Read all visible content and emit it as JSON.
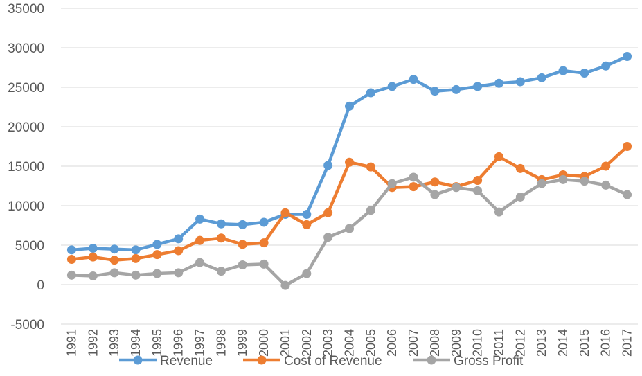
{
  "chart_data": {
    "type": "line",
    "title": "",
    "xlabel": "",
    "ylabel": "",
    "categories": [
      "1991",
      "1992",
      "1993",
      "1994",
      "1995",
      "1996",
      "1997",
      "1998",
      "1999",
      "2000",
      "2001",
      "2002",
      "2003",
      "2004",
      "2005",
      "2006",
      "2007",
      "2008",
      "2009",
      "2010",
      "2011",
      "2012",
      "2013",
      "2014",
      "2015",
      "2016",
      "2017"
    ],
    "ylim": [
      -5000,
      35000
    ],
    "yticks": [
      -5000,
      0,
      5000,
      10000,
      15000,
      20000,
      25000,
      30000,
      35000
    ],
    "ytick_labels": [
      "-5000",
      "0",
      "5000",
      "10000",
      "15000",
      "20000",
      "25000",
      "30000",
      "35000"
    ],
    "grid": true,
    "legend_position": "bottom",
    "series": [
      {
        "name": "Revenue",
        "color": "#5b9bd5",
        "values": [
          4400,
          4600,
          4500,
          4400,
          5100,
          5800,
          8300,
          7700,
          7600,
          7900,
          8900,
          8900,
          15100,
          22600,
          24300,
          25100,
          26000,
          24500,
          24700,
          25100,
          25500,
          25700,
          26200,
          27100,
          26800,
          27700,
          28900
        ]
      },
      {
        "name": "Cost of Revenue",
        "color": "#ed7d31",
        "values": [
          3200,
          3500,
          3100,
          3300,
          3800,
          4300,
          5600,
          5900,
          5100,
          5300,
          9100,
          7600,
          9100,
          15500,
          14900,
          12300,
          12400,
          13000,
          12400,
          13200,
          16200,
          14700,
          13300,
          13900,
          13700,
          15000,
          17500
        ]
      },
      {
        "name": "Gross Profit",
        "color": "#a5a5a5",
        "values": [
          1200,
          1100,
          1500,
          1200,
          1400,
          1500,
          2800,
          1700,
          2500,
          2600,
          -100,
          1400,
          6000,
          7100,
          9400,
          12800,
          13600,
          11400,
          12300,
          11900,
          9200,
          11100,
          12800,
          13300,
          13100,
          12600,
          11400
        ]
      }
    ]
  }
}
